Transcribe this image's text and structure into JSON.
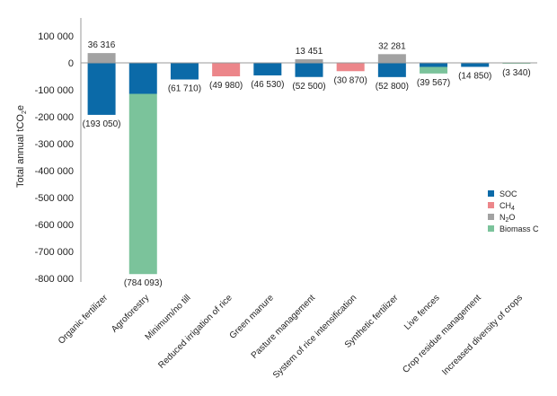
{
  "chart_data": {
    "type": "bar",
    "stacked": true,
    "ylabel": "Total annual tCO",
    "ylabel_sub": "2",
    "ylabel_suffix": "e",
    "ylim": [
      -800000,
      120000
    ],
    "yticks": [
      100000,
      0,
      -100000,
      -200000,
      -300000,
      -400000,
      -500000,
      -600000,
      -700000,
      -800000
    ],
    "ytick_labels": [
      "100 000",
      "0",
      "-100 000",
      "-200 000",
      "-300 000",
      "-400 000",
      "-500 000",
      "-600 000",
      "-700 000",
      "-800 000"
    ],
    "categories": [
      "Organic fertilizer",
      "Agroforestry",
      "Minimum/no till",
      "Reduced irrigation of rice",
      "Green manure",
      "Pasture management",
      "System of rice intensification",
      "Synthetic fertilizer",
      "Live fences",
      "Crop residue management",
      "Increased diversity of crops"
    ],
    "series": [
      {
        "name": "SOC",
        "name_sub": "",
        "name_suffix": "",
        "color": "#0b6aa8",
        "values": [
          -193050,
          -115000,
          -61710,
          0,
          -46530,
          -52500,
          0,
          -52800,
          -15000,
          -14850,
          0
        ]
      },
      {
        "name": "CH",
        "name_sub": "4",
        "name_suffix": "",
        "color": "#ec868a",
        "values": [
          0,
          0,
          0,
          -49980,
          0,
          0,
          -30870,
          0,
          0,
          0,
          0
        ]
      },
      {
        "name": "N",
        "name_sub": "2",
        "name_suffix": "O",
        "color": "#a2a2a2",
        "values": [
          36316,
          0,
          0,
          0,
          0,
          13451,
          0,
          32281,
          0,
          0,
          0
        ]
      },
      {
        "name": "Biomass C",
        "name_sub": "",
        "name_suffix": "",
        "color": "#7bc39b",
        "values": [
          0,
          -669093,
          0,
          0,
          0,
          0,
          0,
          0,
          -24567,
          0,
          -3340
        ]
      }
    ],
    "positive_labels": [
      "36 316",
      "",
      "",
      "",
      "",
      "13 451",
      "",
      "32 281",
      "",
      "",
      ""
    ],
    "negative_labels": [
      "(193 050)",
      "(784 093)",
      "(61 710)",
      "(49 980)",
      "(46 530)",
      "(52 500)",
      "(30 870)",
      "(52 800)",
      "(39 567)",
      "(14 850)",
      "(3 340)"
    ],
    "grid": false,
    "legend_position": "right"
  }
}
